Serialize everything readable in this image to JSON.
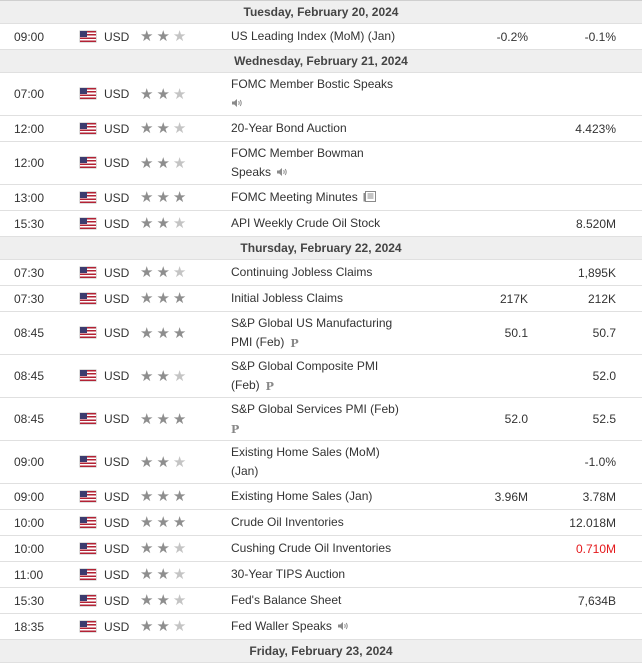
{
  "days": [
    {
      "date": "Tuesday, February 20, 2024",
      "events": [
        {
          "time": "09:00",
          "currency": "USD",
          "stars": 2,
          "title": "US Leading Index (MoM) (Jan)",
          "icon": "",
          "forecast": "-0.2%",
          "actual": "-0.1%",
          "actual_color": ""
        }
      ]
    },
    {
      "date": "Wednesday, February 21, 2024",
      "events": [
        {
          "time": "07:00",
          "currency": "USD",
          "stars": 2,
          "title": "FOMC Member Bostic Speaks",
          "icon": "speaker-icon",
          "forecast": "",
          "actual": "",
          "actual_color": ""
        },
        {
          "time": "12:00",
          "currency": "USD",
          "stars": 2,
          "title": "20-Year Bond Auction",
          "icon": "",
          "forecast": "",
          "actual": "4.423%",
          "actual_color": ""
        },
        {
          "time": "12:00",
          "currency": "USD",
          "stars": 2,
          "title": "FOMC Member Bowman Speaks",
          "icon": "speaker-icon",
          "forecast": "",
          "actual": "",
          "actual_color": ""
        },
        {
          "time": "13:00",
          "currency": "USD",
          "stars": 3,
          "title": "FOMC Meeting Minutes",
          "icon": "document-icon",
          "forecast": "",
          "actual": "",
          "actual_color": ""
        },
        {
          "time": "15:30",
          "currency": "USD",
          "stars": 2,
          "title": "API Weekly Crude Oil Stock",
          "icon": "",
          "forecast": "",
          "actual": "8.520M",
          "actual_color": ""
        }
      ]
    },
    {
      "date": "Thursday, February 22, 2024",
      "events": [
        {
          "time": "07:30",
          "currency": "USD",
          "stars": 2,
          "title": "Continuing Jobless Claims",
          "icon": "",
          "forecast": "",
          "actual": "1,895K",
          "actual_color": ""
        },
        {
          "time": "07:30",
          "currency": "USD",
          "stars": 3,
          "title": "Initial Jobless Claims",
          "icon": "",
          "forecast": "217K",
          "actual": "212K",
          "actual_color": ""
        },
        {
          "time": "08:45",
          "currency": "USD",
          "stars": 3,
          "title": "S&P Global US Manufacturing PMI (Feb)",
          "icon": "preliminary-icon",
          "forecast": "50.1",
          "actual": "50.7",
          "actual_color": ""
        },
        {
          "time": "08:45",
          "currency": "USD",
          "stars": 2,
          "title": "S&P Global Composite PMI (Feb)",
          "icon": "preliminary-icon",
          "forecast": "",
          "actual": "52.0",
          "actual_color": ""
        },
        {
          "time": "08:45",
          "currency": "USD",
          "stars": 3,
          "title": "S&P Global Services PMI (Feb)",
          "icon": "preliminary-icon",
          "forecast": "52.0",
          "actual": "52.5",
          "actual_color": ""
        },
        {
          "time": "09:00",
          "currency": "USD",
          "stars": 2,
          "title": "Existing Home Sales (MoM) (Jan)",
          "icon": "",
          "forecast": "",
          "actual": "-1.0%",
          "actual_color": ""
        },
        {
          "time": "09:00",
          "currency": "USD",
          "stars": 3,
          "title": "Existing Home Sales (Jan)",
          "icon": "",
          "forecast": "3.96M",
          "actual": "3.78M",
          "actual_color": ""
        },
        {
          "time": "10:00",
          "currency": "USD",
          "stars": 3,
          "title": "Crude Oil Inventories",
          "icon": "",
          "forecast": "",
          "actual": "12.018M",
          "actual_color": ""
        },
        {
          "time": "10:00",
          "currency": "USD",
          "stars": 2,
          "title": "Cushing Crude Oil Inventories",
          "icon": "",
          "forecast": "",
          "actual": "0.710M",
          "actual_color": "#e4181b"
        },
        {
          "time": "11:00",
          "currency": "USD",
          "stars": 2,
          "title": "30-Year TIPS Auction",
          "icon": "",
          "forecast": "",
          "actual": "",
          "actual_color": ""
        },
        {
          "time": "15:30",
          "currency": "USD",
          "stars": 2,
          "title": "Fed's Balance Sheet",
          "icon": "",
          "forecast": "",
          "actual": "7,634B",
          "actual_color": ""
        },
        {
          "time": "18:35",
          "currency": "USD",
          "stars": 2,
          "title": "Fed Waller Speaks",
          "icon": "speaker-icon",
          "forecast": "",
          "actual": "",
          "actual_color": ""
        }
      ]
    },
    {
      "date": "Friday, February 23, 2024",
      "events": []
    }
  ]
}
